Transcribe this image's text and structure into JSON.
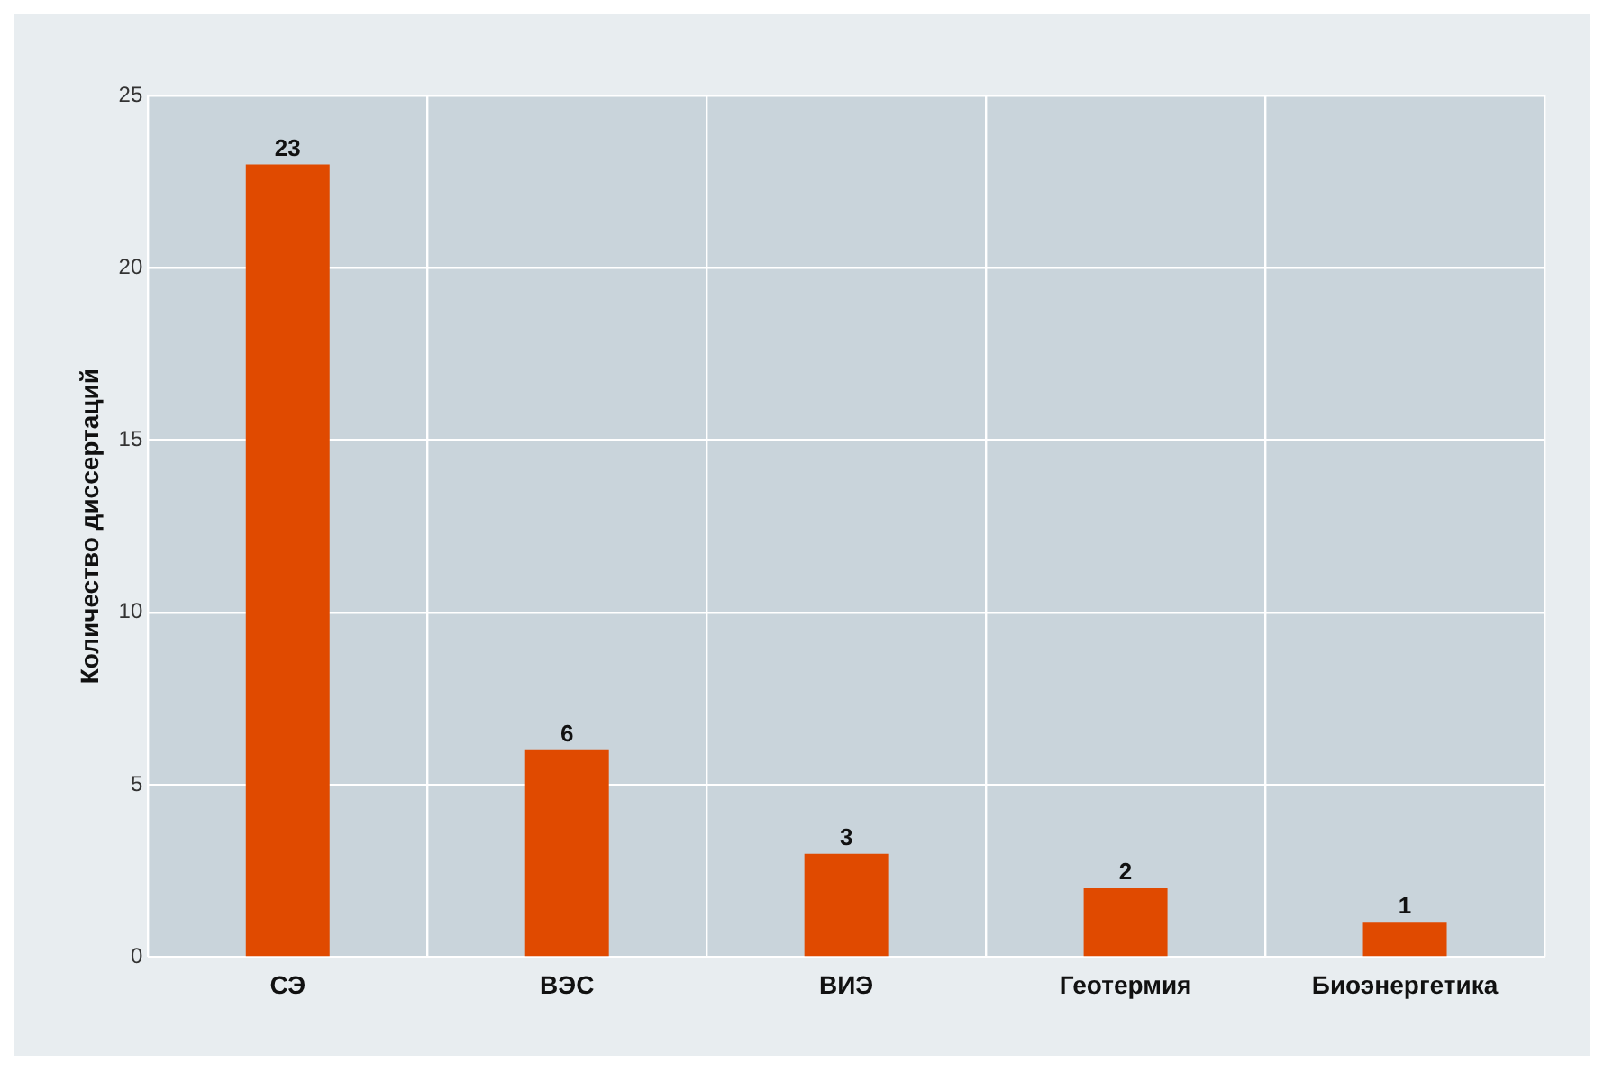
{
  "chart_data": {
    "type": "bar",
    "ylabel": "Количество диссертаций",
    "categories": [
      "СЭ",
      "ВЭС",
      "ВИЭ",
      "Геотермия",
      "Биоэнергетика"
    ],
    "values": [
      23,
      6,
      3,
      2,
      1
    ],
    "color": "#e04a00",
    "ylim": [
      0,
      25
    ],
    "yticks": [
      0,
      5,
      10,
      15,
      20,
      25
    ],
    "grid": true,
    "data_labels": true
  }
}
